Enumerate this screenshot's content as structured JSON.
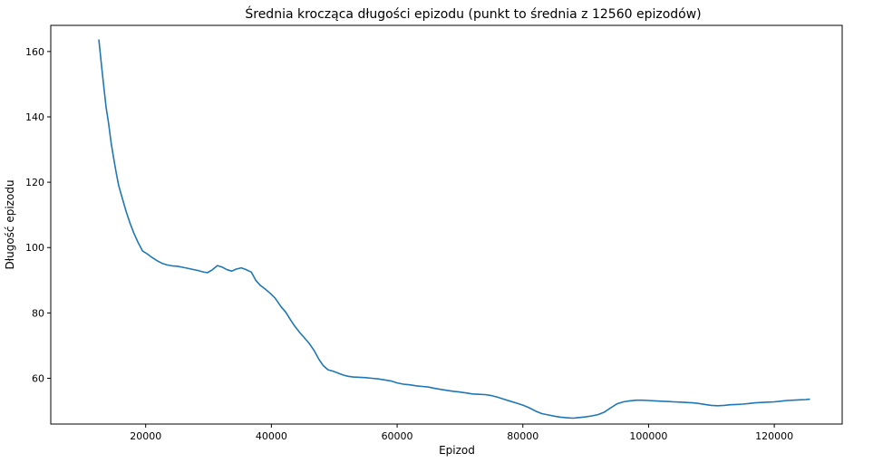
{
  "chart_data": {
    "type": "line",
    "title": "Średnia krocząca długości epizodu (punkt to średnia z 12560 epizodów)",
    "xlabel": "Epizod",
    "ylabel": "Długość epizodu",
    "xlim": [
      4900,
      130800
    ],
    "ylim": [
      46,
      168
    ],
    "xticks": [
      20000,
      40000,
      60000,
      80000,
      100000,
      120000
    ],
    "xtick_labels": [
      "20000",
      "40000",
      "60000",
      "80000",
      "100000",
      "120000"
    ],
    "yticks": [
      60,
      80,
      100,
      120,
      140,
      160
    ],
    "ytick_labels": [
      "60",
      "80",
      "100",
      "120",
      "140",
      "160"
    ],
    "grid": false,
    "color": "#1f77b4",
    "series": [
      {
        "x": [
          12560,
          12900,
          13300,
          13700,
          14100,
          14500,
          14900,
          15300,
          15700,
          16300,
          16900,
          17500,
          18100,
          18800,
          19500,
          20300,
          21000,
          21800,
          22600,
          23400,
          24200,
          25000,
          25800,
          26600,
          27500,
          28300,
          29000,
          29800,
          30600,
          31400,
          32200,
          33000,
          33700,
          34400,
          35200,
          35900,
          36800,
          37500,
          38200,
          39000,
          39800,
          40600,
          41500,
          42300,
          43000,
          43700,
          44500,
          45200,
          46000,
          46800,
          47500,
          48200,
          49000,
          49800,
          50600,
          51400,
          52200,
          53000,
          54000,
          55000,
          56000,
          57000,
          58000,
          59000,
          60000,
          61000,
          62000,
          63000,
          64000,
          65000,
          66000,
          67000,
          68000,
          69000,
          70000,
          71000,
          72000,
          73000,
          74000,
          75000,
          76000,
          77000,
          78000,
          79000,
          80000,
          81000,
          82000,
          83000,
          84000,
          85000,
          86000,
          87000,
          88000,
          89000,
          90000,
          91000,
          92000,
          93000,
          94000,
          95000,
          96000,
          97000,
          98000,
          99000,
          100000,
          101000,
          102000,
          103000,
          104000,
          105000,
          106000,
          107000,
          108000,
          109000,
          110000,
          111000,
          112000,
          113000,
          114000,
          115000,
          116000,
          117000,
          118000,
          119000,
          120000,
          121000,
          122000,
          123000,
          124000,
          125000,
          125600
        ],
        "values": [
          163.5,
          157,
          150,
          143,
          138,
          132,
          127.5,
          123,
          119,
          115,
          111,
          107.5,
          104.5,
          101.5,
          99,
          98,
          97,
          96,
          95.2,
          94.7,
          94.4,
          94.3,
          94,
          93.7,
          93.3,
          93,
          92.6,
          92.3,
          93.2,
          94.5,
          94,
          93.2,
          92.8,
          93.4,
          93.8,
          93.3,
          92.5,
          90,
          88.5,
          87.3,
          86,
          84.5,
          82,
          80.2,
          78,
          76,
          74,
          72.5,
          70.7,
          68.5,
          66,
          64,
          62.6,
          62.2,
          61.6,
          61,
          60.6,
          60.4,
          60.3,
          60.2,
          60,
          59.8,
          59.5,
          59.2,
          58.6,
          58.2,
          58,
          57.7,
          57.5,
          57.3,
          56.9,
          56.6,
          56.3,
          56,
          55.8,
          55.5,
          55.2,
          55.1,
          55,
          54.7,
          54.2,
          53.6,
          53,
          52.4,
          51.8,
          51,
          50,
          49.2,
          48.8,
          48.4,
          48.1,
          47.9,
          47.8,
          48,
          48.2,
          48.5,
          48.9,
          49.7,
          51,
          52.2,
          52.8,
          53.1,
          53.3,
          53.3,
          53.2,
          53.1,
          53,
          52.9,
          52.8,
          52.7,
          52.6,
          52.5,
          52.3,
          52,
          51.7,
          51.6,
          51.7,
          51.9,
          52,
          52.1,
          52.3,
          52.5,
          52.6,
          52.7,
          52.8,
          53,
          53.2,
          53.3,
          53.4,
          53.5,
          53.6
        ]
      }
    ]
  }
}
